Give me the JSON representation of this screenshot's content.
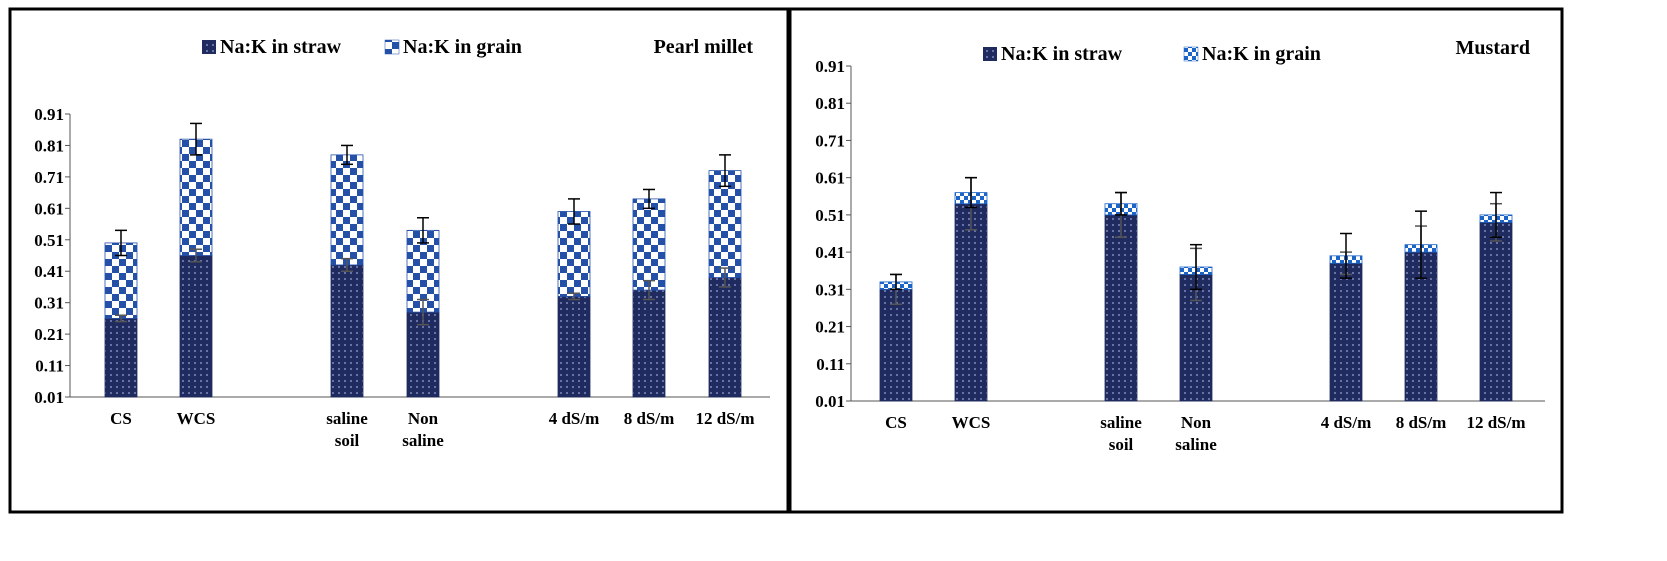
{
  "chart_data": [
    {
      "type": "bar",
      "stacked": true,
      "title": "Pearl millet",
      "categories": [
        "CS",
        "WCS",
        "saline soil",
        "Non saline",
        "4 dS/m",
        "8 dS/m",
        "12 dS/m"
      ],
      "groups": [
        [
          "CS",
          "WCS"
        ],
        [
          "saline soil",
          "Non saline"
        ],
        [
          "4 dS/m",
          "8 dS/m",
          "12 dS/m"
        ]
      ],
      "series": [
        {
          "name": "Na:K in straw",
          "values": [
            0.25,
            0.45,
            0.42,
            0.27,
            0.32,
            0.34,
            0.38
          ],
          "error": [
            0.01,
            0.02,
            0.02,
            0.04,
            0.01,
            0.03,
            0.03
          ]
        },
        {
          "name": "Na:K in grain",
          "values": [
            0.24,
            0.37,
            0.35,
            0.26,
            0.27,
            0.29,
            0.34
          ],
          "error": [
            0.04,
            0.05,
            0.03,
            0.04,
            0.04,
            0.03,
            0.05
          ]
        }
      ],
      "yticks": [
        "0.01",
        "0.11",
        "0.21",
        "0.31",
        "0.41",
        "0.51",
        "0.61",
        "0.71",
        "0.81",
        "0.91"
      ],
      "ylim": [
        0.01,
        0.91
      ],
      "legend_position": "top",
      "colors": {
        "straw": "#1f2a5e",
        "grain_check": "#2450a8"
      }
    },
    {
      "type": "bar",
      "stacked": true,
      "title": "Mustard",
      "categories": [
        "CS",
        "WCS",
        "saline soil",
        "Non saline",
        "4 dS/m",
        "8 dS/m",
        "12 dS/m"
      ],
      "groups": [
        [
          "CS",
          "WCS"
        ],
        [
          "saline soil",
          "Non saline"
        ],
        [
          "4 dS/m",
          "8 dS/m",
          "12 dS/m"
        ]
      ],
      "series": [
        {
          "name": "Na:K in straw",
          "values": [
            0.3,
            0.53,
            0.5,
            0.34,
            0.37,
            0.4,
            0.48
          ],
          "error": [
            0.04,
            0.07,
            0.06,
            0.07,
            0.03,
            0.07,
            0.05
          ]
        },
        {
          "name": "Na:K in grain",
          "values": [
            0.02,
            0.03,
            0.03,
            0.02,
            0.02,
            0.02,
            0.02
          ],
          "error": [
            0.02,
            0.04,
            0.03,
            0.06,
            0.06,
            0.09,
            0.06
          ]
        }
      ],
      "yticks": [
        "0.01",
        "0.11",
        "0.21",
        "0.31",
        "0.41",
        "0.51",
        "0.61",
        "0.71",
        "0.81",
        "0.91"
      ],
      "ylim": [
        0.01,
        0.91
      ],
      "legend_position": "top",
      "colors": {
        "straw": "#1f2a5e",
        "grain_check": "#1d64c8"
      }
    }
  ]
}
